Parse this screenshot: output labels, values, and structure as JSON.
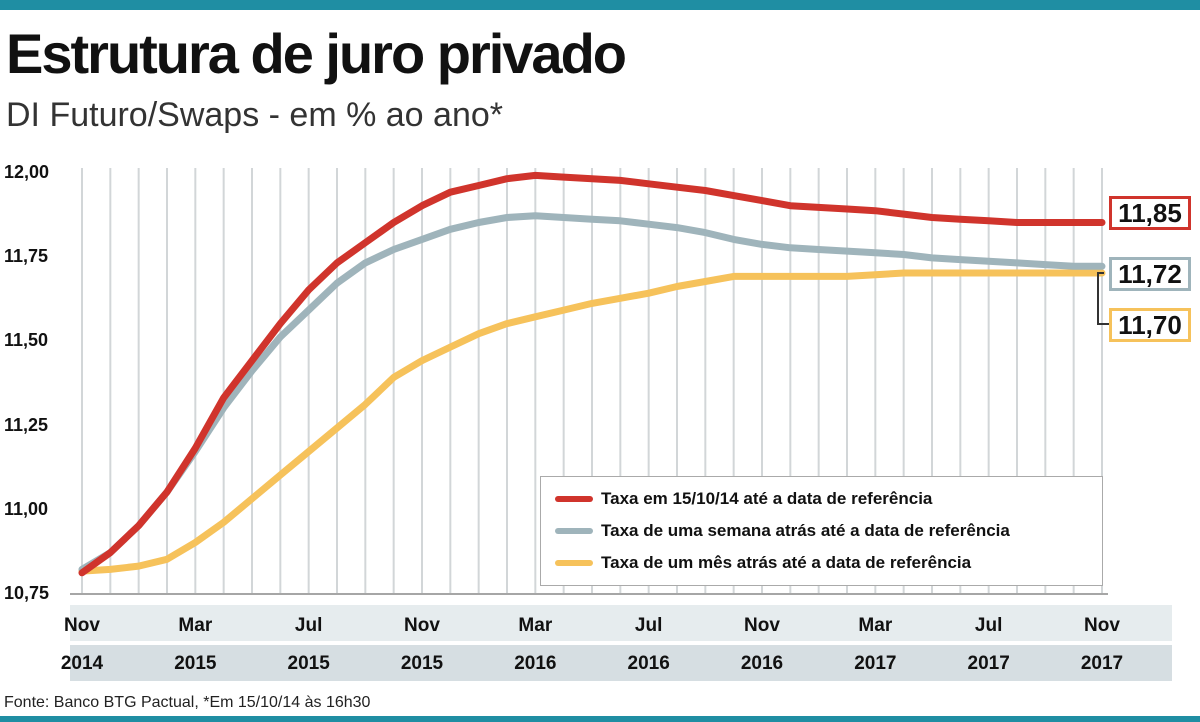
{
  "title": "Estrutura de juro privado",
  "subtitle": "DI Futuro/Swaps - em % ao ano*",
  "source": "Fonte: Banco BTG Pactual, *Em 15/10/14 às 16h30",
  "colors": {
    "accent_bar": "#1f8ea3",
    "red": "#d0342c",
    "gray": "#9fb4bb",
    "yellow": "#f6c25b"
  },
  "chart_data": {
    "type": "line",
    "y_ticks": [
      "12,00",
      "11,75",
      "11,50",
      "11,25",
      "11,00",
      "10,75"
    ],
    "ylim": [
      10.75,
      12.0
    ],
    "x_labels": [
      {
        "month": "Nov",
        "year": "2014"
      },
      {
        "month": "Mar",
        "year": "2015"
      },
      {
        "month": "Jul",
        "year": "2015"
      },
      {
        "month": "Nov",
        "year": "2015"
      },
      {
        "month": "Mar",
        "year": "2016"
      },
      {
        "month": "Jul",
        "year": "2016"
      },
      {
        "month": "Nov",
        "year": "2016"
      },
      {
        "month": "Mar",
        "year": "2017"
      },
      {
        "month": "Jul",
        "year": "2017"
      },
      {
        "month": "Nov",
        "year": "2017"
      }
    ],
    "grid": "vertical",
    "x_months": [
      0,
      1,
      2,
      3,
      4,
      5,
      6,
      7,
      8,
      9,
      10,
      11,
      12,
      13,
      14,
      15,
      16,
      17,
      18,
      19,
      20,
      21,
      22,
      23,
      24,
      25,
      26,
      27,
      28,
      29,
      30,
      31,
      32,
      33,
      34,
      35,
      36
    ],
    "series": [
      {
        "name": "Taxa em 15/10/14 até a data de referência",
        "color": "#d0342c",
        "end_label": "11,85",
        "values": [
          10.81,
          10.87,
          10.95,
          11.05,
          11.18,
          11.33,
          11.44,
          11.55,
          11.65,
          11.73,
          11.79,
          11.85,
          11.9,
          11.94,
          11.96,
          11.98,
          11.99,
          11.985,
          11.98,
          11.975,
          11.965,
          11.955,
          11.945,
          11.93,
          11.915,
          11.9,
          11.895,
          11.89,
          11.885,
          11.875,
          11.865,
          11.86,
          11.855,
          11.85,
          11.85,
          11.85,
          11.85
        ]
      },
      {
        "name": "Taxa de uma semana atrás até a data de referência",
        "color": "#9fb4bb",
        "end_label": "11,72",
        "values": [
          10.82,
          10.87,
          10.95,
          11.05,
          11.17,
          11.3,
          11.41,
          11.51,
          11.59,
          11.67,
          11.73,
          11.77,
          11.8,
          11.83,
          11.85,
          11.865,
          11.87,
          11.865,
          11.86,
          11.855,
          11.845,
          11.835,
          11.82,
          11.8,
          11.785,
          11.775,
          11.77,
          11.765,
          11.76,
          11.755,
          11.745,
          11.74,
          11.735,
          11.73,
          11.725,
          11.72,
          11.72
        ]
      },
      {
        "name": "Taxa de um mês atrás até a data de referência",
        "color": "#f6c25b",
        "end_label": "11,70",
        "values": [
          10.815,
          10.82,
          10.83,
          10.85,
          10.9,
          10.96,
          11.03,
          11.1,
          11.17,
          11.24,
          11.31,
          11.39,
          11.44,
          11.48,
          11.52,
          11.55,
          11.57,
          11.59,
          11.61,
          11.625,
          11.64,
          11.66,
          11.675,
          11.69,
          11.69,
          11.69,
          11.69,
          11.69,
          11.695,
          11.7,
          11.7,
          11.7,
          11.7,
          11.7,
          11.7,
          11.7,
          11.7
        ]
      }
    ]
  }
}
